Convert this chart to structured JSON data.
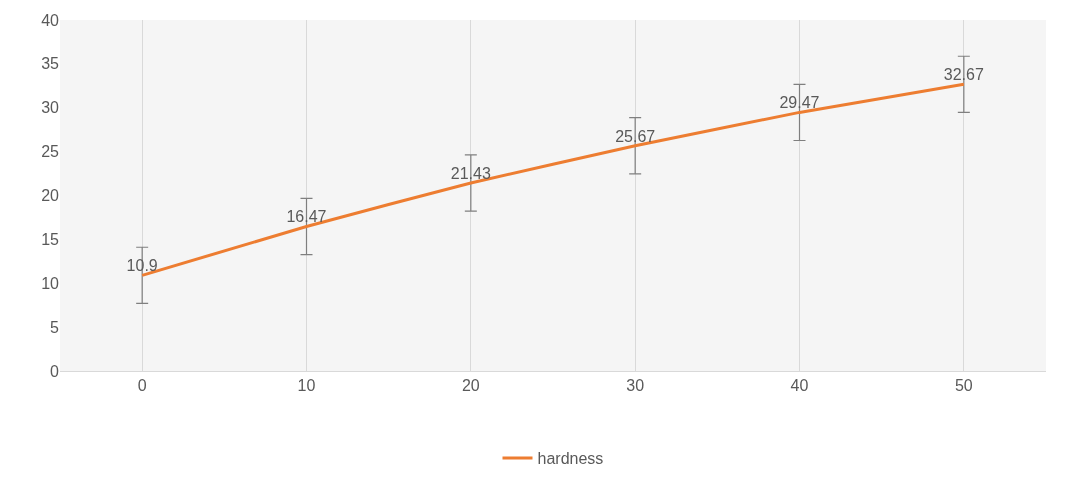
{
  "chart_data": {
    "type": "line",
    "categories": [
      "0",
      "10",
      "20",
      "30",
      "40",
      "50"
    ],
    "series": [
      {
        "name": "hardness",
        "color": "#ed7d31",
        "values": [
          10.9,
          16.47,
          21.43,
          25.67,
          29.47,
          32.67
        ],
        "errors": [
          3.2,
          3.2,
          3.2,
          3.2,
          3.2,
          3.2
        ]
      }
    ],
    "ylim": [
      0,
      40
    ],
    "yticks": [
      0,
      5,
      10,
      15,
      20,
      25,
      30,
      35,
      40
    ],
    "grid": "x",
    "legend": "bottom",
    "data_labels": true,
    "marker": "none",
    "line_style": "solid"
  }
}
